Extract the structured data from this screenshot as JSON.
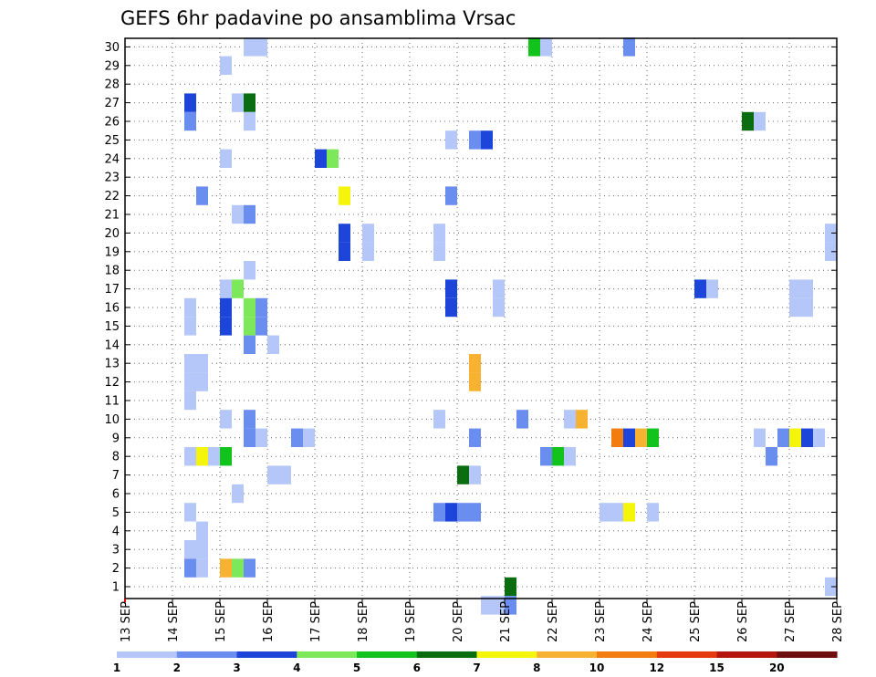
{
  "chart_data": {
    "type": "heatmap",
    "title": "GEFS 6hr padavine po ansamblima Vrsac",
    "xlabel": "",
    "ylabel": "",
    "x_ticks": [
      "13 SEP",
      "14 SEP",
      "15 SEP",
      "16 SEP",
      "17 SEP",
      "18 SEP",
      "19 SEP",
      "20 SEP",
      "21 SEP",
      "22 SEP",
      "23 SEP",
      "24 SEP",
      "25 SEP",
      "26 SEP",
      "27 SEP",
      "28 SEP"
    ],
    "y_ticks": [
      1,
      2,
      3,
      4,
      5,
      6,
      7,
      8,
      9,
      10,
      11,
      12,
      13,
      14,
      15,
      16,
      17,
      18,
      19,
      20,
      21,
      22,
      23,
      24,
      25,
      26,
      27,
      28,
      29,
      30
    ],
    "x_range_steps": [
      0,
      60
    ],
    "steps_per_day": 4,
    "y_range": [
      0,
      30
    ],
    "grid": true,
    "legend_position": "bottom",
    "legend": {
      "labels": [
        "1",
        "2",
        "3",
        "4",
        "5",
        "6",
        "7",
        "8",
        "10",
        "12",
        "15",
        "20"
      ],
      "colors": [
        "#b4c7f8",
        "#6a8ef0",
        "#1d45da",
        "#7de85a",
        "#12c31c",
        "#0a6e10",
        "#f5f50c",
        "#f8b232",
        "#f27d0e",
        "#e53a10",
        "#b5150f",
        "#6e0e0e"
      ]
    },
    "cells": [
      {
        "member": 30,
        "step": 11,
        "cls": 0
      },
      {
        "member": 30,
        "step": 12,
        "cls": 0
      },
      {
        "member": 30,
        "step": 35,
        "cls": 4
      },
      {
        "member": 30,
        "step": 36,
        "cls": 0
      },
      {
        "member": 30,
        "step": 43,
        "cls": 1
      },
      {
        "member": 29,
        "step": 9,
        "cls": 0
      },
      {
        "member": 27,
        "step": 6,
        "cls": 2
      },
      {
        "member": 27,
        "step": 10,
        "cls": 0
      },
      {
        "member": 27,
        "step": 11,
        "cls": 5
      },
      {
        "member": 26,
        "step": 6,
        "cls": 1
      },
      {
        "member": 26,
        "step": 11,
        "cls": 0
      },
      {
        "member": 26,
        "step": 53,
        "cls": 5
      },
      {
        "member": 26,
        "step": 54,
        "cls": 0
      },
      {
        "member": 25,
        "step": 28,
        "cls": 0
      },
      {
        "member": 25,
        "step": 30,
        "cls": 1
      },
      {
        "member": 25,
        "step": 31,
        "cls": 2
      },
      {
        "member": 24,
        "step": 9,
        "cls": 0
      },
      {
        "member": 24,
        "step": 17,
        "cls": 2
      },
      {
        "member": 24,
        "step": 18,
        "cls": 3
      },
      {
        "member": 22,
        "step": 7,
        "cls": 1
      },
      {
        "member": 22,
        "step": 19,
        "cls": 6
      },
      {
        "member": 22,
        "step": 28,
        "cls": 1
      },
      {
        "member": 21,
        "step": 10,
        "cls": 0
      },
      {
        "member": 21,
        "step": 11,
        "cls": 1
      },
      {
        "member": 20,
        "step": 19,
        "cls": 2
      },
      {
        "member": 20,
        "step": 21,
        "cls": 0
      },
      {
        "member": 20,
        "step": 27,
        "cls": 0
      },
      {
        "member": 20,
        "step": 60,
        "cls": 0
      },
      {
        "member": 19,
        "step": 19,
        "cls": 2
      },
      {
        "member": 19,
        "step": 21,
        "cls": 0
      },
      {
        "member": 19,
        "step": 27,
        "cls": 0
      },
      {
        "member": 19,
        "step": 60,
        "cls": 0
      },
      {
        "member": 18,
        "step": 11,
        "cls": 0
      },
      {
        "member": 17,
        "step": 32,
        "cls": 0
      },
      {
        "member": 17,
        "step": 9,
        "cls": 0
      },
      {
        "member": 17,
        "step": 10,
        "cls": 3
      },
      {
        "member": 17,
        "step": 28,
        "cls": 2
      },
      {
        "member": 17,
        "step": 49,
        "cls": 2
      },
      {
        "member": 17,
        "step": 50,
        "cls": 0
      },
      {
        "member": 17,
        "step": 57,
        "cls": 0
      },
      {
        "member": 17,
        "step": 58,
        "cls": 0
      },
      {
        "member": 16,
        "step": 32,
        "cls": 0
      },
      {
        "member": 16,
        "step": 6,
        "cls": 0
      },
      {
        "member": 16,
        "step": 9,
        "cls": 2
      },
      {
        "member": 16,
        "step": 11,
        "cls": 3
      },
      {
        "member": 16,
        "step": 12,
        "cls": 1
      },
      {
        "member": 16,
        "step": 28,
        "cls": 2
      },
      {
        "member": 16,
        "step": 57,
        "cls": 0
      },
      {
        "member": 16,
        "step": 58,
        "cls": 0
      },
      {
        "member": 15,
        "step": 6,
        "cls": 0
      },
      {
        "member": 15,
        "step": 9,
        "cls": 2
      },
      {
        "member": 15,
        "step": 11,
        "cls": 3
      },
      {
        "member": 15,
        "step": 12,
        "cls": 1
      },
      {
        "member": 14,
        "step": 11,
        "cls": 1
      },
      {
        "member": 14,
        "step": 13,
        "cls": 0
      },
      {
        "member": 13,
        "step": 6,
        "cls": 0
      },
      {
        "member": 13,
        "step": 7,
        "cls": 0
      },
      {
        "member": 13,
        "step": 30,
        "cls": 7
      },
      {
        "member": 12,
        "step": 6,
        "cls": 0
      },
      {
        "member": 12,
        "step": 7,
        "cls": 0
      },
      {
        "member": 12,
        "step": 30,
        "cls": 7
      },
      {
        "member": 11,
        "step": 6,
        "cls": 0
      },
      {
        "member": 10,
        "step": 9,
        "cls": 0
      },
      {
        "member": 10,
        "step": 11,
        "cls": 1
      },
      {
        "member": 10,
        "step": 27,
        "cls": 0
      },
      {
        "member": 10,
        "step": 34,
        "cls": 1
      },
      {
        "member": 10,
        "step": 38,
        "cls": 0
      },
      {
        "member": 10,
        "step": 39,
        "cls": 7
      },
      {
        "member": 9,
        "step": 11,
        "cls": 1
      },
      {
        "member": 9,
        "step": 12,
        "cls": 0
      },
      {
        "member": 9,
        "step": 15,
        "cls": 1
      },
      {
        "member": 9,
        "step": 16,
        "cls": 0
      },
      {
        "member": 9,
        "step": 30,
        "cls": 1
      },
      {
        "member": 9,
        "step": 42,
        "cls": 8
      },
      {
        "member": 9,
        "step": 43,
        "cls": 2
      },
      {
        "member": 9,
        "step": 44,
        "cls": 7
      },
      {
        "member": 9,
        "step": 45,
        "cls": 4
      },
      {
        "member": 9,
        "step": 54,
        "cls": 0
      },
      {
        "member": 9,
        "step": 56,
        "cls": 1
      },
      {
        "member": 9,
        "step": 57,
        "cls": 6
      },
      {
        "member": 9,
        "step": 58,
        "cls": 2
      },
      {
        "member": 9,
        "step": 59,
        "cls": 0
      },
      {
        "member": 8,
        "step": 6,
        "cls": 0
      },
      {
        "member": 8,
        "step": 7,
        "cls": 6
      },
      {
        "member": 8,
        "step": 8,
        "cls": 0
      },
      {
        "member": 8,
        "step": 9,
        "cls": 4
      },
      {
        "member": 8,
        "step": 36,
        "cls": 1
      },
      {
        "member": 8,
        "step": 37,
        "cls": 4
      },
      {
        "member": 8,
        "step": 38,
        "cls": 0
      },
      {
        "member": 8,
        "step": 55,
        "cls": 1
      },
      {
        "member": 7,
        "step": 13,
        "cls": 0
      },
      {
        "member": 7,
        "step": 14,
        "cls": 0
      },
      {
        "member": 7,
        "step": 29,
        "cls": 5
      },
      {
        "member": 7,
        "step": 30,
        "cls": 0
      },
      {
        "member": 6,
        "step": 10,
        "cls": 0
      },
      {
        "member": 5,
        "step": 6,
        "cls": 0
      },
      {
        "member": 5,
        "step": 27,
        "cls": 1
      },
      {
        "member": 5,
        "step": 28,
        "cls": 2
      },
      {
        "member": 5,
        "step": 29,
        "cls": 1
      },
      {
        "member": 5,
        "step": 30,
        "cls": 1
      },
      {
        "member": 5,
        "step": 41,
        "cls": 0
      },
      {
        "member": 5,
        "step": 42,
        "cls": 0
      },
      {
        "member": 5,
        "step": 43,
        "cls": 6
      },
      {
        "member": 5,
        "step": 45,
        "cls": 0
      },
      {
        "member": 4,
        "step": 7,
        "cls": 0
      },
      {
        "member": 3,
        "step": 6,
        "cls": 0
      },
      {
        "member": 3,
        "step": 7,
        "cls": 0
      },
      {
        "member": 2,
        "step": 6,
        "cls": 1
      },
      {
        "member": 2,
        "step": 7,
        "cls": 0
      },
      {
        "member": 2,
        "step": 9,
        "cls": 7
      },
      {
        "member": 2,
        "step": 10,
        "cls": 3
      },
      {
        "member": 2,
        "step": 11,
        "cls": 1
      },
      {
        "member": 1,
        "step": 33,
        "cls": 5
      },
      {
        "member": 1,
        "step": 60,
        "cls": 0
      },
      {
        "member": 0,
        "step": 31,
        "cls": 0
      },
      {
        "member": 0,
        "step": 32,
        "cls": 0
      },
      {
        "member": 0,
        "step": 33,
        "cls": 1
      }
    ]
  }
}
